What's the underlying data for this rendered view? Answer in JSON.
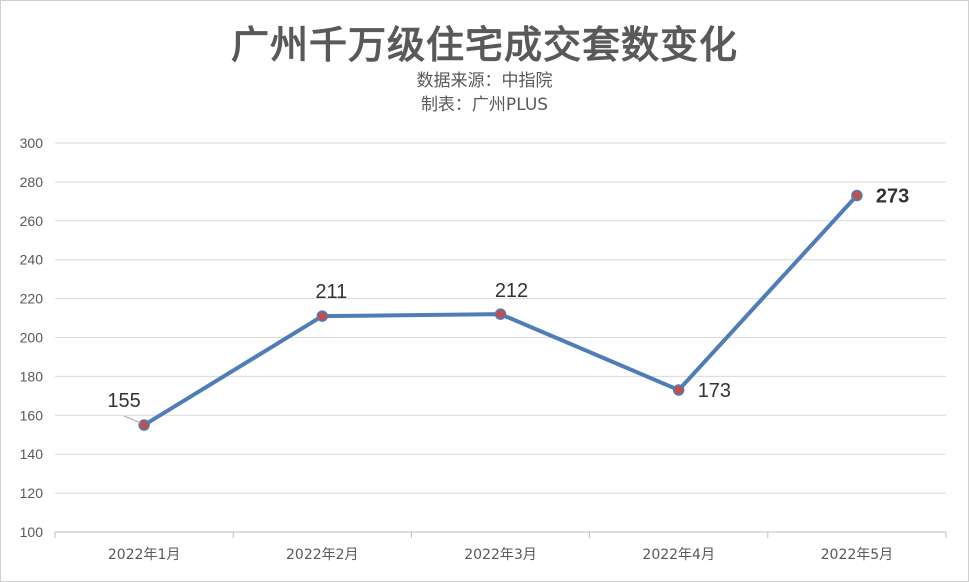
{
  "chart_data": {
    "type": "line",
    "title": "广州千万级住宅成交套数变化",
    "subtitle_lines": [
      "数据来源：中指院",
      "制表：广州PLUS"
    ],
    "categories": [
      "2022年1月",
      "2022年2月",
      "2022年3月",
      "2022年4月",
      "2022年5月"
    ],
    "series": [
      {
        "values": [
          155,
          211,
          212,
          173,
          273
        ],
        "color": "#4F7DB8"
      }
    ],
    "data_labels": [
      "155",
      "211",
      "212",
      "173",
      "273"
    ],
    "highlight_index": 4,
    "highlight_color": "#FF0000",
    "marker_color": "#C0504D",
    "ylim": [
      100,
      300
    ],
    "yticks": [
      100,
      120,
      140,
      160,
      180,
      200,
      220,
      240,
      260,
      280,
      300
    ],
    "grid": true,
    "xlabel": "",
    "ylabel": ""
  }
}
